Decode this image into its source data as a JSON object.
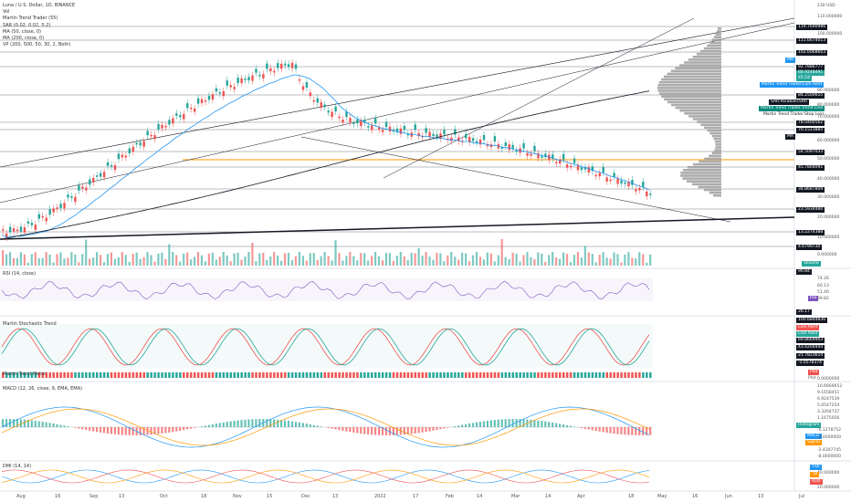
{
  "chart_header": {
    "symbol_line": "Luna / U.S. Dollar, 1D, BINANCE",
    "indicators": [
      "Vol",
      "Martin Trend Trader (55)",
      "SAR (0.02, 0.02, 0.2)",
      "MA (50, close, 0)",
      "MA (200, close, 0)",
      "VP (200, 500, 50, 30, 2, Both)"
    ]
  },
  "price_axis": {
    "top_label": "130 USD",
    "levels": [
      "119.7690986",
      "111.6674013",
      "102.6068603",
      "92.7886777",
      "84.2500655",
      "78.0400562",
      "70.1523885",
      "54.5097033",
      "45.7804091",
      "34.8687809",
      "23.5934480",
      "13.2274388",
      "4.6799730"
    ],
    "ticks": [
      "110.000000",
      "100.000000",
      "90.000000",
      "80.000000",
      "70.000000",
      "60.000000",
      "50.000000",
      "40.000000",
      "30.000000",
      "20.000000",
      "10.000000",
      "0.000000"
    ]
  },
  "price_tags": {
    "ma_short": "MA",
    "ma_long": "MA",
    "live_alert": "Martin Trend Trader:Live Alert",
    "sar": "SAR:ParabolicSAR",
    "trend_line": "Martin Trend Trader:Trend Line",
    "stop_loss": "Martin Trend Trader:Stop Loss",
    "current_price": "88.9248491",
    "timer": "45:18",
    "volume": "Volume"
  },
  "rsi_pane": {
    "title": "RSI (14, close)",
    "levels": [
      "90.84",
      "74.26",
      "60.13",
      "51.40",
      "26.17"
    ],
    "current_tag": "RSI",
    "current_value": "39.82"
  },
  "stoch_pane": {
    "title": "Martin Stochastic Trend",
    "subtitle": "Martin Trend Meter",
    "levels": [
      "100.6844836",
      "69.8669903",
      "43.4204444",
      "21.7823614",
      "-1.0578374",
      "0.0000000"
    ],
    "tag_live_alert_1": "Live Alert",
    "tag_live_alert_2": "Live Alert",
    "tag_plot": "Plot",
    "tag_plot2": "Plot"
  },
  "macd_pane": {
    "title": "MACD (12, 26, close, 9, EMA, EMA)",
    "levels": [
      "10.6669652",
      "9.1658451",
      "6.9247539",
      "5.0547254",
      "3.3264737",
      "1.1675056",
      "-0.1278752",
      "-4.0000000",
      "-2.4307745",
      "-8.0000000"
    ],
    "tag_histogram": "Histogram",
    "tag_macd": "MACD",
    "tag_signal": "Signal"
  },
  "dmi_pane": {
    "title": "DMI (14, 14)",
    "levels": [
      "40.000000",
      "20.000000"
    ],
    "tag_plus": "+DI",
    "tag_minus": "-DI",
    "tag_adx": "ADX"
  },
  "time_axis": [
    "Aug",
    "16",
    "Sep",
    "13",
    "Oct",
    "18",
    "Nov",
    "15",
    "Dec",
    "13",
    "2022",
    "17",
    "Feb",
    "14",
    "Mar",
    "14",
    "Apr",
    "18",
    "May",
    "16",
    "Jun",
    "13",
    "Jul"
  ],
  "colors": {
    "up": "#26a69a",
    "down": "#ef5350",
    "ma50": "#2196f3",
    "ma200": "#131722",
    "rsi": "#7e57c2",
    "sar": "#131722",
    "vp": "#9e9e9e",
    "orange": "#ff9800",
    "live_alert_tag": "#2196f3",
    "trend_tag": "#00897b"
  }
}
